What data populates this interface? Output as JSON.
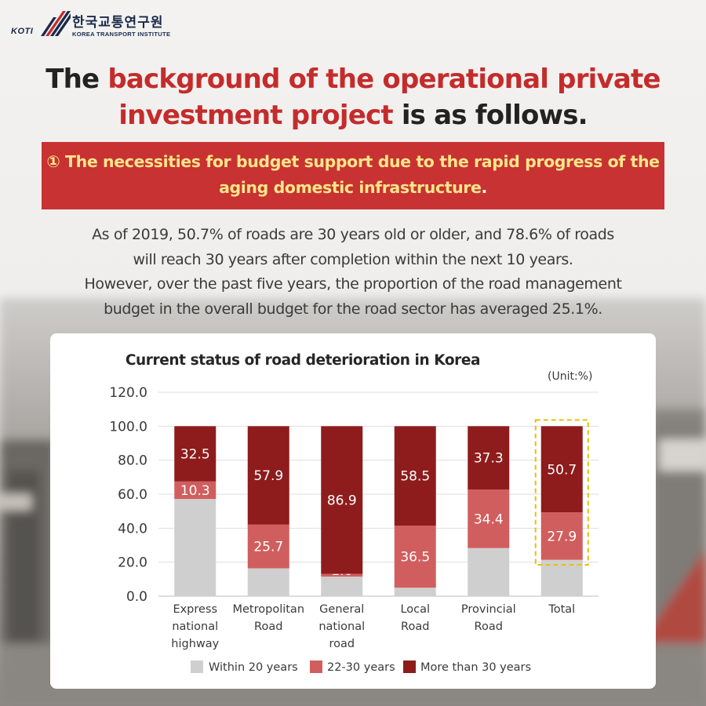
{
  "logo": {
    "koti": "KOTI",
    "korean": "한국교통연구원",
    "english": "KOREA TRANSPORT INSTITUTE"
  },
  "headline": {
    "part1": "The ",
    "highlight": "background of the operational private investment project",
    "part2": " is as follows."
  },
  "banner": {
    "text": "① The necessities for budget support due to the rapid progress of the aging domestic infrastructure",
    "period": "."
  },
  "paragraph": {
    "line1": "As of 2019, 50.7% of roads are 30 years old or older, and 78.6% of roads",
    "line2": "will reach 30 years after completion within the next 10 years.",
    "line3": "However, over the past five years, the proportion of the road management",
    "line4": "budget in the overall budget for the road sector has averaged 25.1%."
  },
  "colors": {
    "within20": "#cfcfcf",
    "y22_30": "#d15e5e",
    "over30": "#8e1c1c",
    "highlight_border": "#e8c000"
  },
  "chart_data": {
    "type": "bar",
    "stacked": true,
    "title": "Current status of road deterioration in Korea",
    "unit": "(Unit:%)",
    "categories": [
      [
        "Express",
        "national",
        "highway"
      ],
      [
        "Metropolitan",
        "Road"
      ],
      [
        "General",
        "national",
        "road"
      ],
      [
        "Local",
        "Road"
      ],
      [
        "Provincial",
        "Road"
      ],
      [
        "Total"
      ]
    ],
    "series": [
      {
        "name": "Within 20 years",
        "values": [
          57.2,
          16.4,
          11.5,
          5.0,
          28.3,
          21.4
        ]
      },
      {
        "name": "22-30 years",
        "values": [
          10.3,
          25.7,
          1.6,
          36.5,
          34.4,
          27.9
        ]
      },
      {
        "name": "More than 30 years",
        "values": [
          32.5,
          57.9,
          86.9,
          58.5,
          37.3,
          50.7
        ]
      }
    ],
    "labels": [
      [
        null,
        "10.3",
        "32.5"
      ],
      [
        null,
        "25.7",
        "57.9"
      ],
      [
        null,
        "1.6",
        "86.9"
      ],
      [
        null,
        "36.5",
        "58.5"
      ],
      [
        null,
        "34.4",
        "37.3"
      ],
      [
        null,
        "27.9",
        "50.7"
      ]
    ],
    "y_ticks": [
      "0.0",
      "20.0",
      "40.0",
      "60.0",
      "80.0",
      "100.0",
      "120.0"
    ],
    "ylim": [
      0,
      120
    ],
    "highlighted_category": "Total",
    "legend_position": "bottom",
    "grid": true
  }
}
